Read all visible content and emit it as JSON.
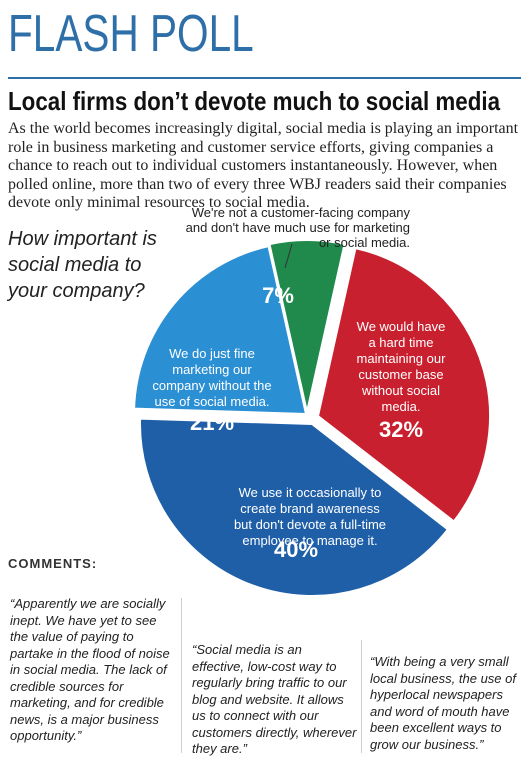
{
  "header": {
    "kicker": "FLASH POLL",
    "headline": "Local firms don’t devote much to social media",
    "intro": "As the world becomes increasingly digital, social media is playing an important role in business marketing and customer service efforts, giving companies a chance to reach out to individual customers instantaneously. However, when polled online, more than two of every three WBJ readers said their companies devote only minimal resources to social media."
  },
  "question": "How important is social media to your company?",
  "chart_data": {
    "type": "pie",
    "title": "",
    "slices": [
      {
        "label_lines": [
          "We're not a customer-facing company",
          "and don't have much use for marketing",
          "or social media."
        ],
        "value": 7,
        "value_label": "7%",
        "color": "#1f8a4c"
      },
      {
        "label_lines": [
          "We would have",
          "a hard time",
          "maintaining our",
          "customer base",
          "without social",
          "media."
        ],
        "value": 32,
        "value_label": "32%",
        "color": "#c8202f"
      },
      {
        "label_lines": [
          "We use it occasionally to",
          "create brand awareness",
          "but don't devote a full-time",
          "employee to manage it."
        ],
        "value": 40,
        "value_label": "40%",
        "color": "#1f5fa8"
      },
      {
        "label_lines": [
          "We do just fine",
          "marketing our",
          "company without the",
          "use of social media."
        ],
        "value": 21,
        "value_label": "21%",
        "color": "#2b8fd4"
      }
    ]
  },
  "comments": {
    "title": "COMMENTS:",
    "quotes": [
      "“Apparently we are socially inept. We have yet to see the value of paying to partake in the flood of noise in social media. The lack of credible sources for marketing, and for credible news, is a major business opportunity.”",
      "“Social media is an effective, low-cost way to regularly bring traffic to our blog and website. It allows us to connect with our customers directly, wherever they are.”",
      "“With being a very small local business, the use of hyperlocal newspapers and word of mouth have been excellent ways to grow our business.”"
    ]
  },
  "colors": {
    "accent": "#2e6fa8",
    "divider": "#b9b9b9"
  }
}
